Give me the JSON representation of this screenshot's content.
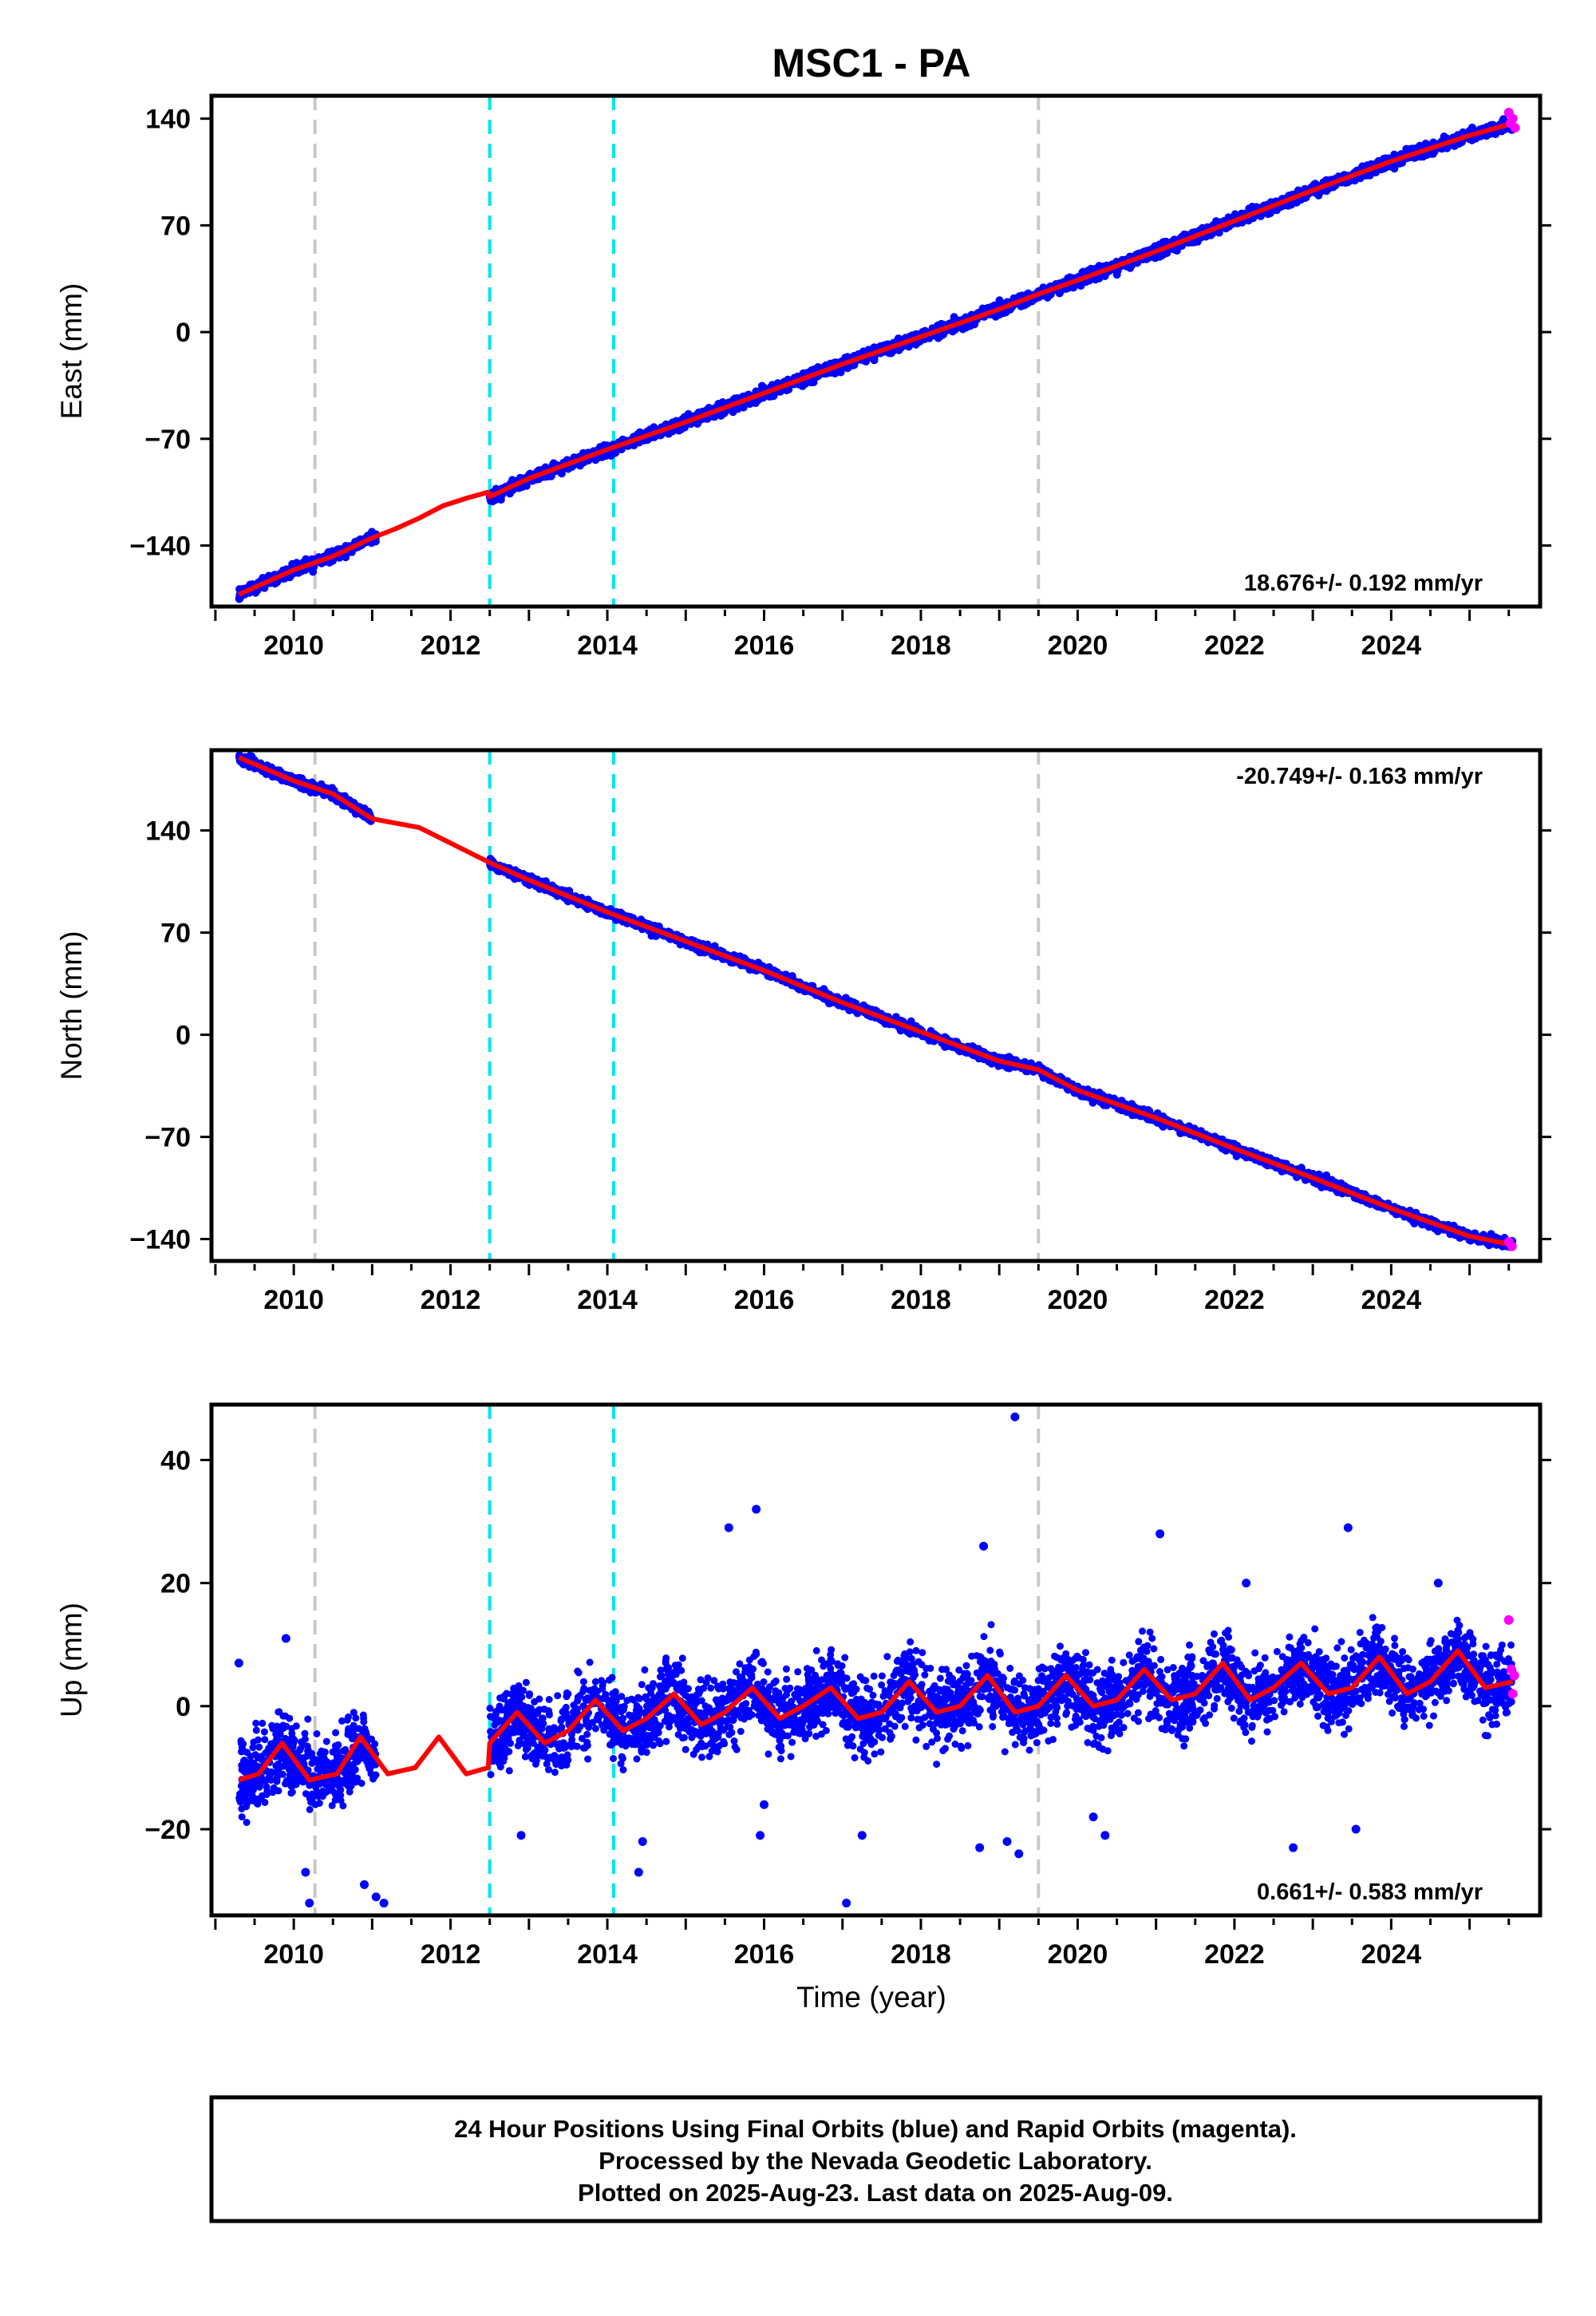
{
  "title": "MSC1 - PA",
  "xlabel": "Time (year)",
  "xticks": [
    2010,
    2012,
    2014,
    2016,
    2018,
    2020,
    2022,
    2024
  ],
  "xlim": [
    2008.95,
    2025.9
  ],
  "cyan_lines": [
    2012.5,
    2014.08
  ],
  "gray_lines": [
    2010.27,
    2019.5
  ],
  "colors": {
    "final": "#0000ff",
    "rapid": "#ff00ff",
    "model": "#ff0000",
    "cyan": "#00e5ee",
    "gray": "#c8c8c8"
  },
  "chart_data": [
    {
      "type": "scatter",
      "ylabel": "East (mm)",
      "ylim": [
        -180,
        155
      ],
      "yticks": [
        -140,
        -70,
        0,
        70,
        140
      ],
      "rate": "18.676+/- 0.192 mm/yr",
      "rate_position": "bottom-right",
      "segments": [
        {
          "x": [
            2009.3,
            2011.05
          ],
          "y": [
            -172,
            -129
          ]
        },
        {
          "x": [
            2012.5,
            2025.55
          ],
          "y": [
            -108,
            137
          ]
        }
      ],
      "model_x": [
        2009.3,
        2010.0,
        2010.5,
        2011.0,
        2011.3,
        2011.6,
        2011.9,
        2012.2,
        2012.48,
        2012.5,
        2013.0,
        2014.0,
        2015.0,
        2016.0,
        2017.0,
        2018.0,
        2019.0,
        2019.5,
        2020.0,
        2021.0,
        2022.0,
        2023.0,
        2024.0,
        2025.0,
        2025.55
      ],
      "model_y": [
        -172,
        -156,
        -147,
        -135,
        -129,
        -122,
        -114,
        -109,
        -105,
        -108,
        -96,
        -77,
        -59,
        -40,
        -21,
        -3,
        15,
        25,
        34,
        53,
        73,
        93,
        112,
        129,
        137
      ],
      "rapid": {
        "x": [
          2025.5,
          2025.52,
          2025.55,
          2025.58
        ],
        "y": [
          144,
          137,
          140,
          134
        ]
      }
    },
    {
      "type": "scatter",
      "ylabel": "North (mm)",
      "ylim": [
        -155,
        195
      ],
      "yticks": [
        -140,
        -70,
        0,
        70,
        140
      ],
      "rate": "-20.749+/- 0.163 mm/yr",
      "rate_position": "top-right",
      "segments": [
        {
          "x": [
            2009.3,
            2011.0
          ],
          "y": [
            190,
            148
          ]
        },
        {
          "x": [
            2012.5,
            2025.55
          ],
          "y": [
            118,
            -143
          ]
        }
      ],
      "model_x": [
        2009.3,
        2010.0,
        2010.5,
        2011.0,
        2011.3,
        2011.6,
        2011.9,
        2012.2,
        2012.5,
        2013.0,
        2014.0,
        2015.0,
        2016.0,
        2017.0,
        2018.0,
        2019.0,
        2019.5,
        2020.0,
        2021.0,
        2022.0,
        2023.0,
        2024.0,
        2025.0,
        2025.55
      ],
      "model_y": [
        190,
        174,
        165,
        148,
        145,
        142,
        134,
        126,
        118,
        106,
        84,
        64,
        44,
        22,
        2,
        -18,
        -24,
        -38,
        -57,
        -78,
        -98,
        -119,
        -138,
        -144
      ],
      "rapid": {
        "x": [
          2025.5,
          2025.54
        ],
        "y": [
          -142,
          -145
        ]
      }
    },
    {
      "type": "scatter",
      "ylabel": "Up (mm)",
      "ylim": [
        -34,
        49
      ],
      "yticks": [
        -20,
        0,
        20,
        40
      ],
      "rate": "0.661+/- 0.583 mm/yr",
      "rate_position": "bottom-right",
      "segments": [
        {
          "x": [
            2009.3,
            2011.05
          ],
          "y": [
            -8,
            -8
          ]
        },
        {
          "x": [
            2012.5,
            2025.55
          ],
          "y": [
            -4,
            4
          ]
        }
      ],
      "model_x": [
        2009.3,
        2009.55,
        2009.85,
        2010.2,
        2010.55,
        2010.85,
        2011.2,
        2011.55,
        2011.85,
        2012.2,
        2012.48,
        2012.5,
        2012.85,
        2013.2,
        2013.5,
        2013.85,
        2014.2,
        2014.5,
        2014.85,
        2015.2,
        2015.5,
        2015.85,
        2016.2,
        2016.5,
        2016.85,
        2017.2,
        2017.5,
        2017.85,
        2018.2,
        2018.5,
        2018.85,
        2019.2,
        2019.5,
        2019.85,
        2020.2,
        2020.5,
        2020.85,
        2021.2,
        2021.5,
        2021.85,
        2022.2,
        2022.5,
        2022.85,
        2023.2,
        2023.5,
        2023.85,
        2024.2,
        2024.5,
        2024.85,
        2025.2,
        2025.55
      ],
      "model_y": [
        -12,
        -11,
        -6,
        -12,
        -11,
        -5,
        -11,
        -10,
        -5,
        -11,
        -10,
        -6,
        -1,
        -6,
        -4,
        1,
        -4,
        -2,
        2,
        -3,
        -1,
        3,
        -2,
        0,
        3,
        -2,
        -1,
        4,
        -1,
        0,
        5,
        -1,
        0,
        5,
        0,
        1,
        6,
        1,
        2,
        7,
        1,
        3,
        7,
        2,
        3,
        8,
        2,
        4,
        9,
        3,
        4
      ],
      "outliers": {
        "x": [
          2009.3,
          2009.9,
          2010.2,
          2010.15,
          2010.9,
          2011.05,
          2011.15,
          2012.9,
          2014.45,
          2014.4,
          2015.55,
          2015.9,
          2015.95,
          2016.0,
          2017.05,
          2017.25,
          2018.8,
          2018.75,
          2019.1,
          2019.2,
          2019.25,
          2020.35,
          2020.2,
          2021.05,
          2022.15,
          2022.75,
          2023.45,
          2023.55,
          2024.6
        ],
        "y": [
          7,
          11,
          -32,
          -27,
          -29,
          -31,
          -32,
          -21,
          -22,
          -27,
          29,
          32,
          -21,
          -16,
          -32,
          -21,
          26,
          -23,
          -22,
          47,
          -24,
          -21,
          -18,
          28,
          20,
          -23,
          29,
          -20,
          20
        ]
      },
      "rapid": {
        "x": [
          2025.5,
          2025.53,
          2025.55,
          2025.57
        ],
        "y": [
          14,
          6,
          2,
          5
        ]
      }
    }
  ],
  "footer": [
    "24 Hour Positions Using Final Orbits (blue) and Rapid Orbits (magenta).",
    "Processed by the Nevada Geodetic Laboratory.",
    "Plotted on 2025-Aug-23. Last data on 2025-Aug-09."
  ]
}
